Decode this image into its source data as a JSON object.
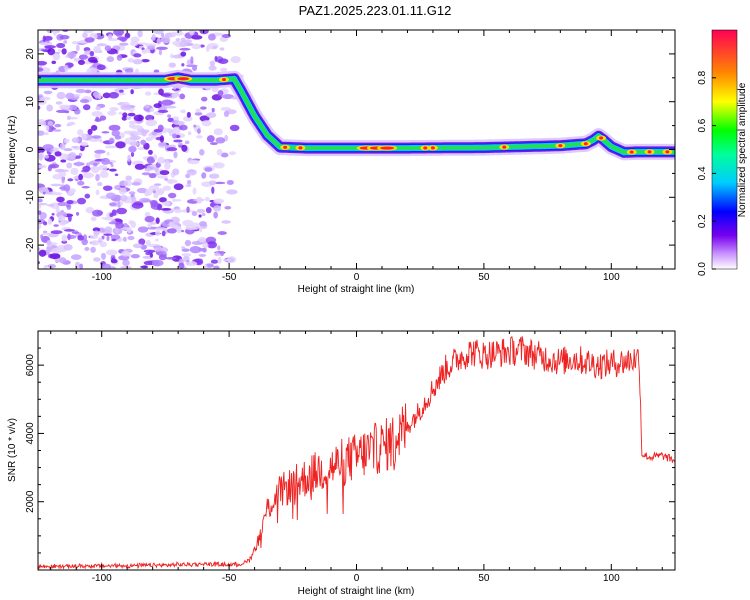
{
  "title": "PAZ1.2025.223.01.11.G12",
  "colors": {
    "snr_line": "#ee2222",
    "track": "#22dd33",
    "scatter_purple": "#7722dd",
    "axis": "#000000"
  },
  "chart_data": [
    {
      "type": "heatmap",
      "xlabel": "Height of straight line (km)",
      "ylabel": "Frequency (Hz)",
      "xlim": [
        -125,
        125
      ],
      "ylim": [
        -25,
        25
      ],
      "xticks": [
        -100,
        -50,
        0,
        50,
        100
      ],
      "yticks": [
        -20,
        -10,
        0,
        10,
        20
      ],
      "grid": false,
      "colorbar": {
        "label": "Normalized spectral amplitude",
        "range": [
          0,
          1
        ],
        "ticks": [
          0.0,
          0.2,
          0.4,
          0.6,
          0.8
        ],
        "colormap": "rainbow"
      },
      "ridge": {
        "x": [
          -125,
          -75,
          -70,
          -65,
          -55,
          -48,
          -45,
          -40,
          -35,
          -30,
          -20,
          0,
          20,
          50,
          80,
          90,
          93,
          95,
          97,
          100,
          105,
          110,
          125
        ],
        "y": [
          14.5,
          14.5,
          15,
          14.5,
          14.5,
          14.8,
          12,
          7,
          3,
          0.5,
          0.3,
          0.3,
          0.3,
          0.4,
          0.8,
          1.2,
          2,
          2.8,
          2,
          0.6,
          -0.6,
          -0.5,
          -0.5
        ]
      },
      "noise_region_x": [
        -125,
        -45
      ]
    },
    {
      "type": "line",
      "xlabel": "Height of straight line (km)",
      "ylabel": "SNR (10 * v/v)",
      "xlim": [
        -125,
        125
      ],
      "ylim": [
        0,
        7000
      ],
      "xticks": [
        -100,
        -50,
        0,
        50,
        100
      ],
      "yticks": [
        2000,
        4000,
        6000
      ],
      "grid": false,
      "series": [
        {
          "x": [
            -125,
            -100,
            -75,
            -60,
            -50,
            -45,
            -42,
            -40,
            -38,
            -35,
            -30,
            -25,
            -20,
            -15,
            -10,
            -5,
            0,
            5,
            10,
            15,
            20,
            25,
            30,
            35,
            40,
            45,
            50,
            55,
            60,
            65,
            70,
            75,
            80,
            85,
            90,
            95,
            100,
            105,
            110,
            111,
            112,
            115,
            120,
            125
          ],
          "y": [
            100,
            120,
            140,
            180,
            150,
            180,
            300,
            600,
            1000,
            1800,
            2300,
            2500,
            2700,
            2900,
            3000,
            3200,
            3300,
            3500,
            3600,
            3800,
            4200,
            4700,
            5300,
            5900,
            6200,
            6400,
            6300,
            6350,
            6400,
            6450,
            6300,
            6200,
            6100,
            6200,
            6100,
            6000,
            6050,
            6100,
            6200,
            6200,
            3400,
            3300,
            3350,
            3200
          ]
        }
      ]
    }
  ]
}
